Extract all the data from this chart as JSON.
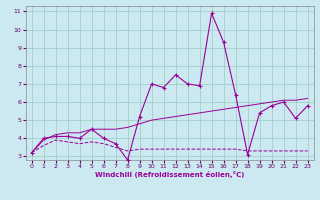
{
  "xlabel": "Windchill (Refroidissement éolien,°C)",
  "bg_color": "#cce8f0",
  "line_color": "#990099",
  "grid_color": "#99ccbb",
  "x": [
    0,
    1,
    2,
    3,
    4,
    5,
    6,
    7,
    8,
    9,
    10,
    11,
    12,
    13,
    14,
    15,
    16,
    17,
    18,
    19,
    20,
    21,
    22,
    23
  ],
  "series1": [
    3.2,
    4.0,
    4.1,
    4.1,
    4.0,
    4.5,
    4.0,
    3.7,
    2.8,
    5.2,
    7.0,
    6.8,
    7.5,
    7.0,
    6.9,
    10.9,
    9.3,
    6.4,
    3.1,
    5.4,
    5.8,
    6.0,
    5.1,
    5.8
  ],
  "series2": [
    3.2,
    3.6,
    3.9,
    3.8,
    3.7,
    3.8,
    3.7,
    3.5,
    3.3,
    3.4,
    3.4,
    3.4,
    3.4,
    3.4,
    3.4,
    3.4,
    3.4,
    3.4,
    3.3,
    3.3,
    3.3,
    3.3,
    3.3,
    3.3
  ],
  "series3": [
    3.2,
    3.9,
    4.2,
    4.3,
    4.3,
    4.5,
    4.5,
    4.5,
    4.6,
    4.8,
    5.0,
    5.1,
    5.2,
    5.3,
    5.4,
    5.5,
    5.6,
    5.7,
    5.8,
    5.9,
    6.0,
    6.1,
    6.1,
    6.2
  ],
  "ylim": [
    3,
    11
  ],
  "yticks": [
    3,
    4,
    5,
    6,
    7,
    8,
    9,
    10,
    11
  ],
  "xticks": [
    0,
    1,
    2,
    3,
    4,
    5,
    6,
    7,
    8,
    9,
    10,
    11,
    12,
    13,
    14,
    15,
    16,
    17,
    18,
    19,
    20,
    21,
    22,
    23
  ]
}
